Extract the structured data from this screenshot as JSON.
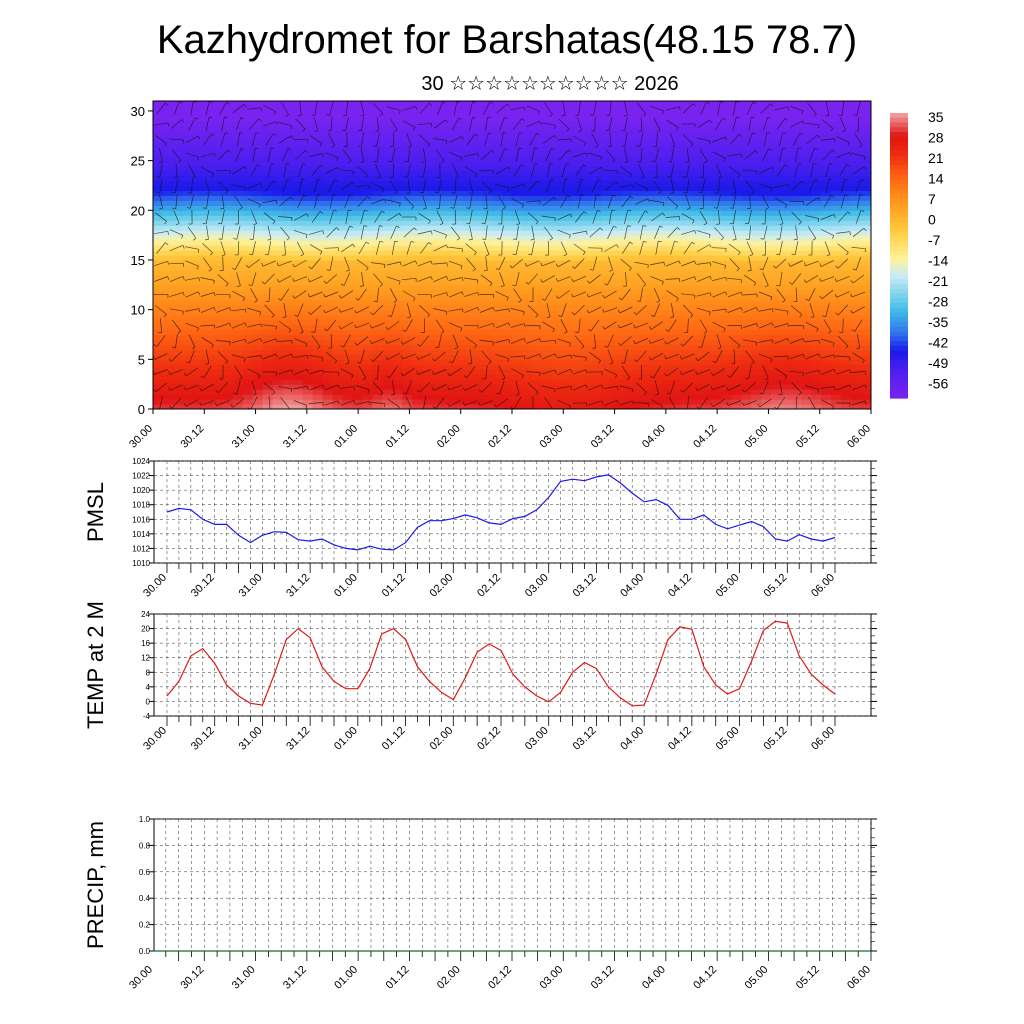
{
  "title": "Kazhydromet for Barshatas(48.15 78.7)",
  "subtitle": "30 ☆☆☆☆☆☆☆☆☆☆ 2026",
  "chart_data": [
    {
      "type": "heatmap",
      "name": "temperature-wind cross-section",
      "x_tick_labels": [
        "30.00",
        "30.12",
        "31.00",
        "31.12",
        "01.00",
        "01.12",
        "02.00",
        "02.12",
        "03.00",
        "03.12",
        "04.00",
        "04.12",
        "05.00",
        "05.12",
        "06.00"
      ],
      "yticks": [
        0,
        5,
        10,
        15,
        20,
        25,
        30
      ],
      "ylim": [
        0,
        31
      ],
      "colorbar_labels": [
        35,
        28,
        21,
        14,
        7,
        0,
        -7,
        -14,
        -21,
        -28,
        -35,
        -42,
        -49,
        -56
      ],
      "colorbar_range": [
        -60,
        38
      ],
      "colors": {
        "stops": [
          "#7a22f0",
          "#4a1ff0",
          "#1a1ae8",
          "#3070ef",
          "#40bde6",
          "#c8ecf6",
          "#fff29a",
          "#ffcc40",
          "#ffa020",
          "#ff6a14",
          "#ee2a10",
          "#e01414",
          "#f2a6a6"
        ],
        "stop_values": [
          -60,
          -50,
          -44,
          -38,
          -30,
          -18,
          -12,
          -3,
          6,
          15,
          24,
          30,
          38
        ]
      }
    },
    {
      "type": "line",
      "name": "PMSL",
      "ylabel": "PMSL",
      "ylim": [
        1010,
        1024
      ],
      "yticks": [
        1010,
        1012,
        1014,
        1016,
        1018,
        1020,
        1022,
        1024
      ],
      "x_tick_labels": [
        "30.00",
        "30.12",
        "31.00",
        "31.12",
        "01.00",
        "01.12",
        "02.00",
        "02.12",
        "03.00",
        "03.12",
        "04.00",
        "04.12",
        "05.00",
        "05.12",
        "06.00"
      ],
      "line_color": "#1a1ae6",
      "values": [
        1017.0,
        1017.5,
        1017.3,
        1016.0,
        1015.3,
        1015.3,
        1013.8,
        1012.8,
        1013.8,
        1014.3,
        1014.2,
        1013.2,
        1013.0,
        1013.3,
        1012.5,
        1012.0,
        1011.8,
        1012.3,
        1011.9,
        1011.8,
        1012.8,
        1014.9,
        1015.8,
        1015.8,
        1016.1,
        1016.6,
        1016.2,
        1015.5,
        1015.3,
        1016.1,
        1016.4,
        1017.3,
        1019.0,
        1021.2,
        1021.5,
        1021.3,
        1021.8,
        1022.1,
        1021.0,
        1019.6,
        1018.4,
        1018.7,
        1017.9,
        1016.0,
        1016.0,
        1016.6,
        1015.3,
        1014.7,
        1015.2,
        1015.7,
        1015.0,
        1013.3,
        1013.0,
        1013.9,
        1013.3,
        1013.0,
        1013.5
      ]
    },
    {
      "type": "line",
      "name": "TEMP at 2 M",
      "ylabel": "TEMP at 2 M",
      "ylim": [
        -4,
        24
      ],
      "yticks": [
        -4,
        0,
        4,
        8,
        12,
        16,
        20,
        24
      ],
      "x_tick_labels": [
        "30.00",
        "30.12",
        "31.00",
        "31.12",
        "01.00",
        "01.12",
        "02.00",
        "02.12",
        "03.00",
        "03.12",
        "04.00",
        "04.12",
        "05.00",
        "05.12",
        "06.00"
      ],
      "line_color": "#dd1a1a",
      "values": [
        1.5,
        5.5,
        12.5,
        14.5,
        10.5,
        4.5,
        1.5,
        -0.5,
        -1.0,
        7.5,
        17.0,
        20.0,
        17.5,
        9.5,
        5.5,
        3.5,
        3.5,
        9.0,
        18.5,
        20.0,
        17.0,
        9.5,
        5.5,
        2.5,
        0.5,
        6.5,
        13.5,
        15.8,
        14.0,
        7.5,
        4.0,
        1.5,
        -0.1,
        2.5,
        8.0,
        10.7,
        9.0,
        4.0,
        1.0,
        -1.2,
        -1.0,
        7.5,
        17.0,
        20.5,
        19.8,
        9.5,
        4.5,
        2.0,
        3.5,
        11.0,
        19.5,
        22.0,
        21.5,
        12.5,
        7.5,
        4.5,
        2.0
      ]
    },
    {
      "type": "line",
      "name": "PRECIP, mm",
      "ylabel": "PRECIP, mm",
      "ylim": [
        0,
        1
      ],
      "yticks": [
        "0.0",
        "0.2",
        "0.4",
        "0.6",
        "0.8",
        "1.0"
      ],
      "x_tick_labels": [
        "30.00",
        "30.12",
        "31.00",
        "31.12",
        "01.00",
        "01.12",
        "02.00",
        "02.12",
        "03.00",
        "03.12",
        "04.00",
        "04.12",
        "05.00",
        "05.12",
        "06.00"
      ],
      "line_color": "#1a6a2a",
      "values": [
        0,
        0,
        0,
        0,
        0,
        0,
        0,
        0,
        0,
        0,
        0,
        0,
        0,
        0,
        0,
        0,
        0,
        0,
        0,
        0,
        0,
        0,
        0,
        0,
        0,
        0,
        0,
        0,
        0,
        0,
        0,
        0,
        0,
        0,
        0,
        0,
        0,
        0,
        0,
        0,
        0,
        0,
        0,
        0,
        0,
        0,
        0,
        0,
        0,
        0,
        0,
        0,
        0,
        0,
        0,
        0,
        0
      ]
    }
  ]
}
